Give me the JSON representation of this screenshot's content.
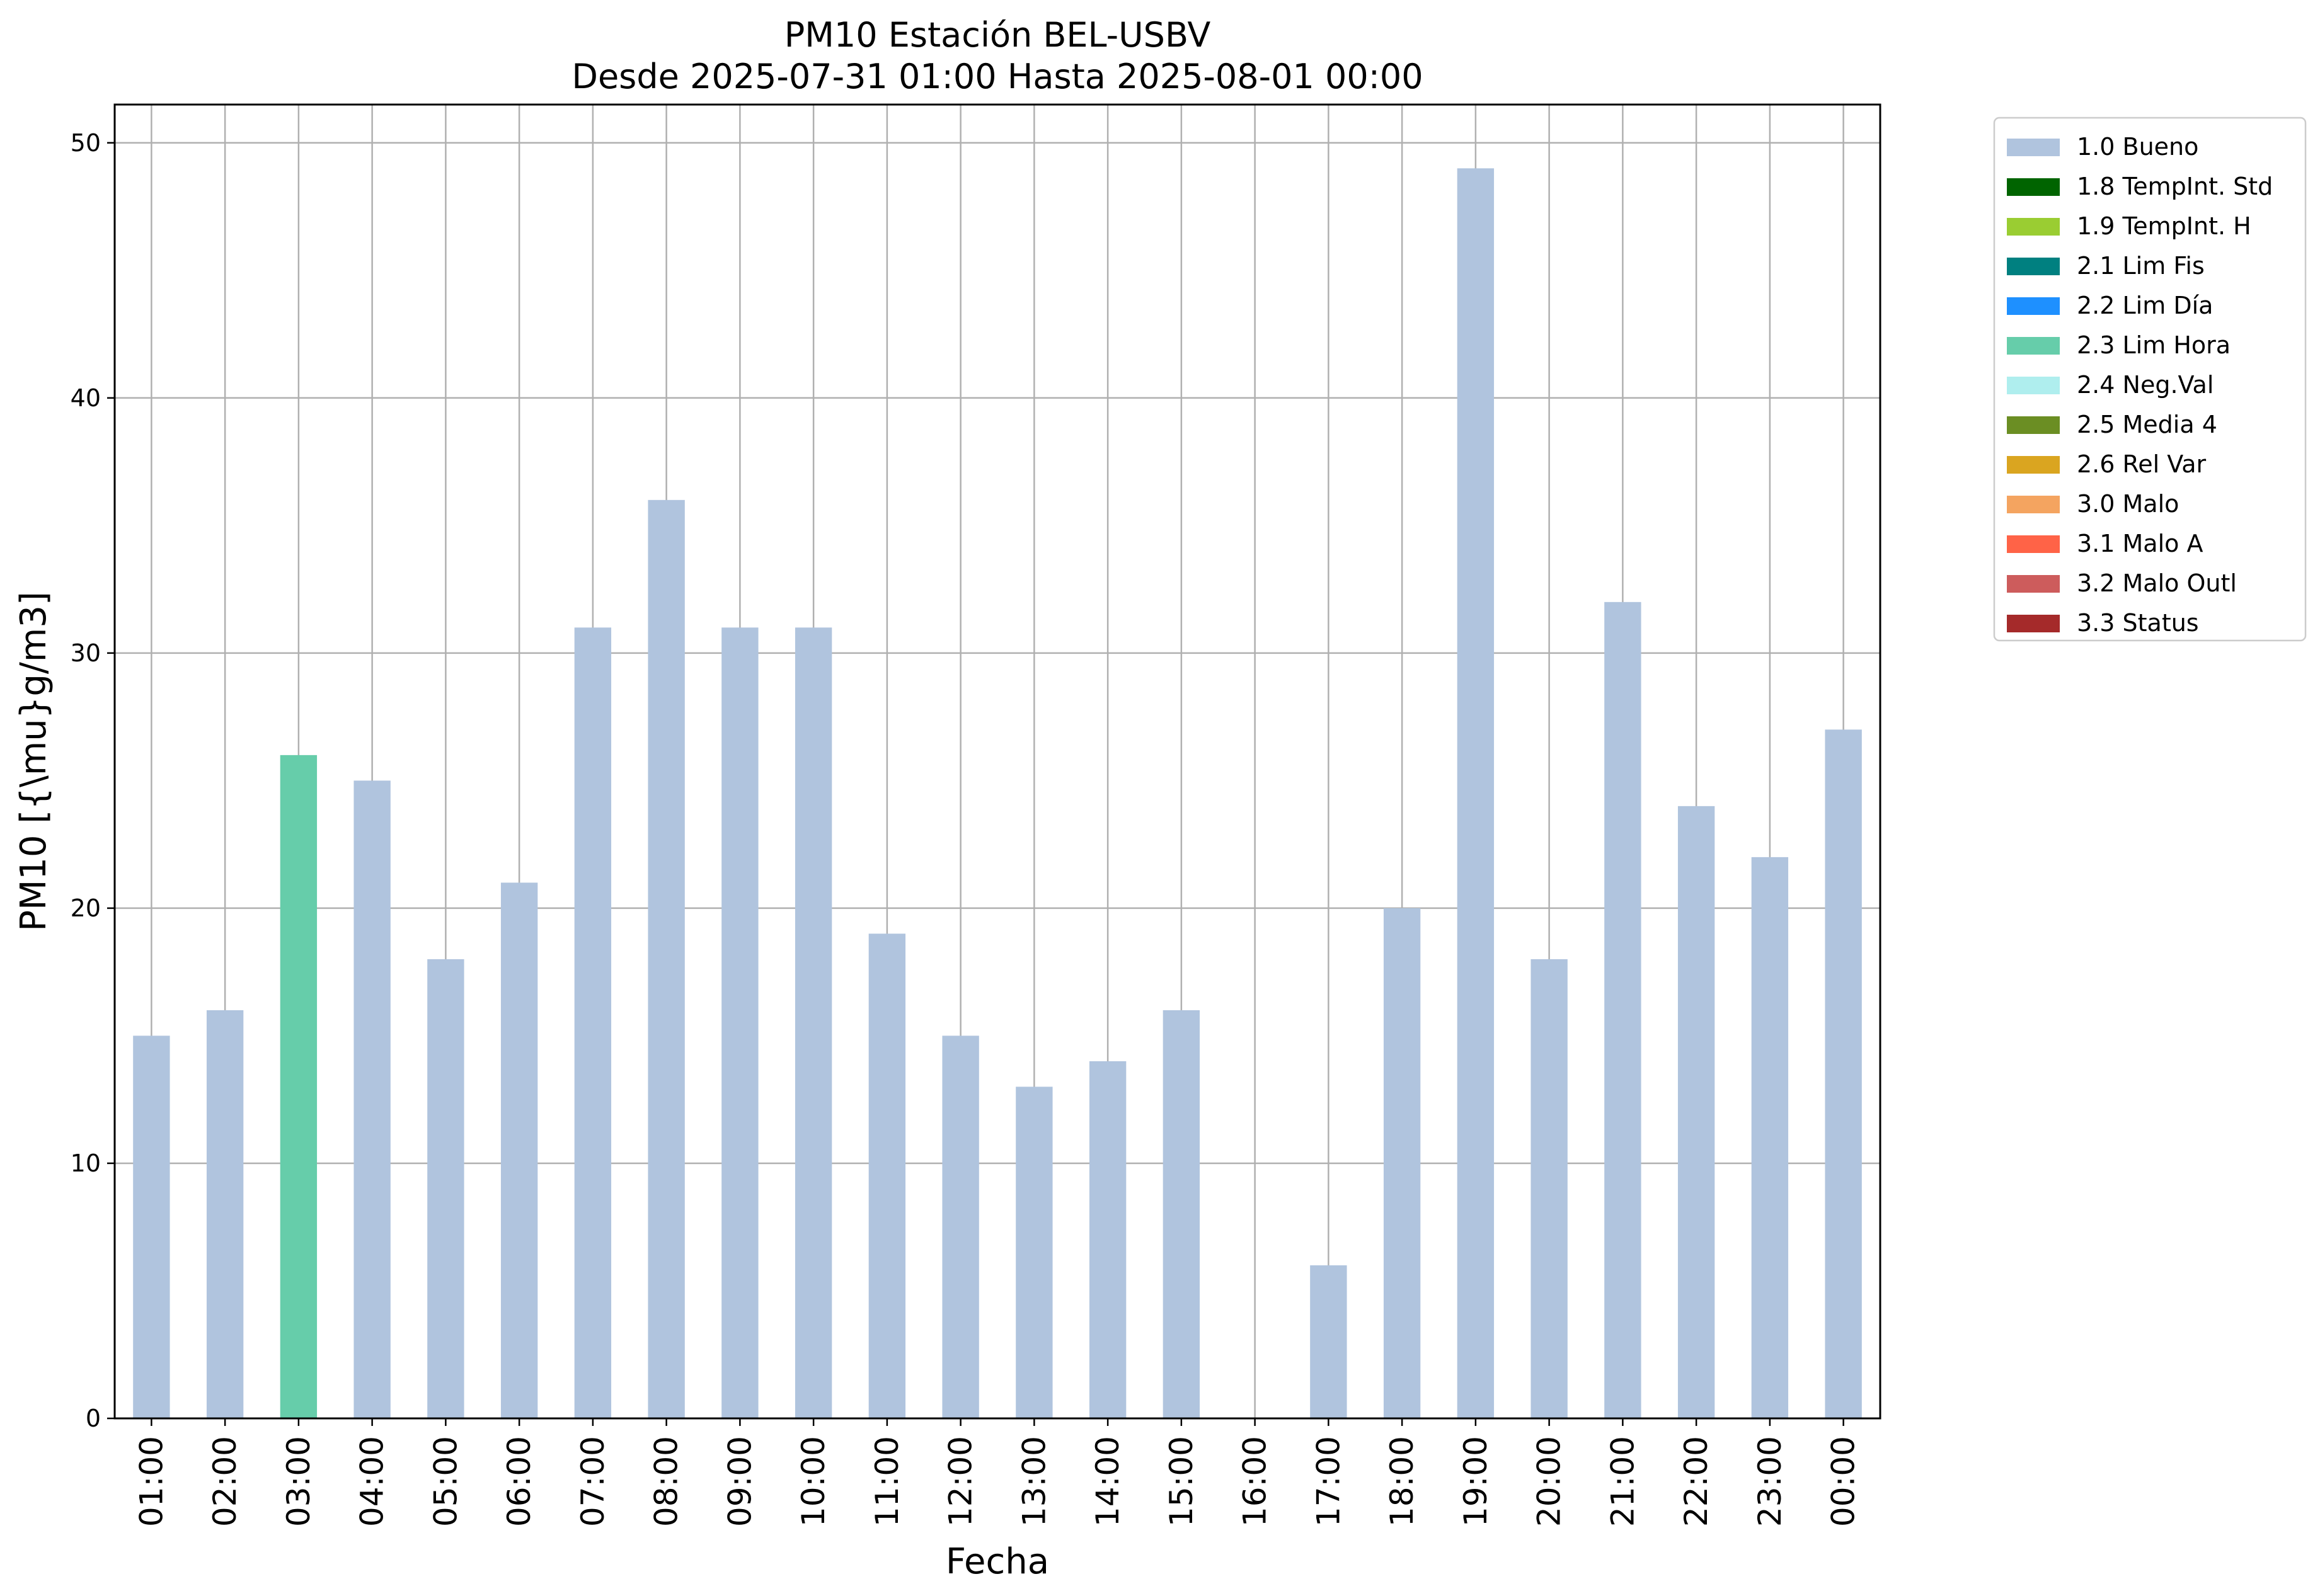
{
  "chart_data": {
    "type": "bar",
    "title": "PM10 Estación BEL-USBV",
    "subtitle": "Desde 2025-07-31 01:00 Hasta 2025-08-01 00:00",
    "xlabel": "Fecha",
    "ylabel": "PM10 [{\\mu}g/m3]",
    "ylim": [
      0,
      51.5
    ],
    "yticks": [
      "0",
      "10",
      "20",
      "30",
      "40",
      "50"
    ],
    "grid": true,
    "legend_position": "outside-top-right",
    "categories": [
      "01:00",
      "02:00",
      "03:00",
      "04:00",
      "05:00",
      "06:00",
      "07:00",
      "08:00",
      "09:00",
      "10:00",
      "11:00",
      "12:00",
      "13:00",
      "14:00",
      "15:00",
      "16:00",
      "17:00",
      "18:00",
      "19:00",
      "20:00",
      "21:00",
      "22:00",
      "23:00",
      "00:00"
    ],
    "values": [
      15,
      16,
      26,
      25,
      18,
      21,
      31,
      36,
      31,
      31,
      19,
      15,
      13,
      14,
      16,
      0,
      6,
      20,
      49,
      18,
      32,
      24,
      22,
      27
    ],
    "flags": [
      "1.0 Bueno",
      "1.0 Bueno",
      "2.3 Lim Hora",
      "1.0 Bueno",
      "1.0 Bueno",
      "1.0 Bueno",
      "1.0 Bueno",
      "1.0 Bueno",
      "1.0 Bueno",
      "1.0 Bueno",
      "1.0 Bueno",
      "1.0 Bueno",
      "1.0 Bueno",
      "1.0 Bueno",
      "1.0 Bueno",
      "1.0 Bueno",
      "1.0 Bueno",
      "1.0 Bueno",
      "1.0 Bueno",
      "1.0 Bueno",
      "1.0 Bueno",
      "1.0 Bueno",
      "1.0 Bueno",
      "1.0 Bueno"
    ],
    "legend": [
      {
        "label": "1.0 Bueno",
        "color": "#b0c4de"
      },
      {
        "label": "1.8 TempInt. Std",
        "color": "#006400"
      },
      {
        "label": "1.9 TempInt. H",
        "color": "#9acd32"
      },
      {
        "label": "2.1 Lim Fis",
        "color": "#008080"
      },
      {
        "label": "2.2 Lim Día",
        "color": "#1e90ff"
      },
      {
        "label": "2.3 Lim Hora",
        "color": "#66cdaa"
      },
      {
        "label": "2.4 Neg.Val",
        "color": "#afeeee"
      },
      {
        "label": "2.5 Media 4",
        "color": "#6b8e23"
      },
      {
        "label": "2.6 Rel Var",
        "color": "#daa520"
      },
      {
        "label": "3.0 Malo",
        "color": "#f4a460"
      },
      {
        "label": "3.1 Malo A",
        "color": "#ff6347"
      },
      {
        "label": "3.2 Malo Outl",
        "color": "#cd5c5c"
      },
      {
        "label": "3.3 Status",
        "color": "#a52a2a"
      }
    ]
  }
}
